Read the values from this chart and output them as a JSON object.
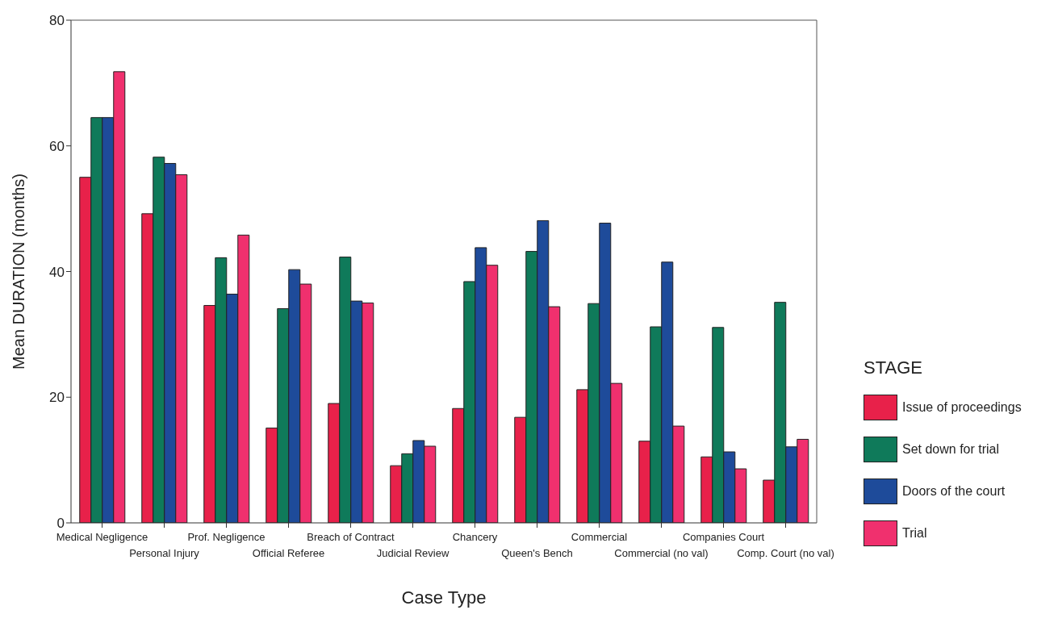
{
  "chart_data": {
    "type": "bar",
    "xlabel": "Case Type",
    "ylabel": "Mean DURATION (months)",
    "legend_title": "STAGE",
    "categories": [
      "Medical Negligence",
      "Personal Injury",
      "Prof. Negligence",
      "Official Referee",
      "Breach of Contract",
      "Judicial Review",
      "Chancery",
      "Queen's Bench",
      "Commercial",
      "Commercial (no val)",
      "Companies Court",
      "Comp. Court (no val)"
    ],
    "series": [
      {
        "name": "Issue of proceedings",
        "color": "#e8214a",
        "values": [
          55.0,
          49.2,
          34.6,
          15.1,
          19.0,
          9.1,
          18.2,
          16.8,
          21.2,
          13.0,
          10.5,
          6.8
        ]
      },
      {
        "name": "Set down for trial",
        "color": "#0f7a5a",
        "values": [
          64.5,
          58.2,
          42.2,
          34.1,
          42.3,
          11.0,
          38.4,
          43.2,
          34.9,
          31.2,
          31.1,
          35.1
        ]
      },
      {
        "name": "Doors of the court",
        "color": "#1e4b9a",
        "values": [
          64.5,
          57.2,
          36.4,
          40.3,
          35.3,
          13.1,
          43.8,
          48.1,
          47.7,
          41.5,
          11.3,
          12.1
        ]
      },
      {
        "name": "Trial",
        "color": "#f0306e",
        "values": [
          71.8,
          55.4,
          45.8,
          38.0,
          35.0,
          12.2,
          41.0,
          34.4,
          22.2,
          15.4,
          8.6,
          13.3
        ]
      }
    ],
    "ylim": [
      0,
      80
    ],
    "yticks": [
      0,
      20,
      40,
      60,
      80
    ],
    "grid": false,
    "legend": "right"
  }
}
